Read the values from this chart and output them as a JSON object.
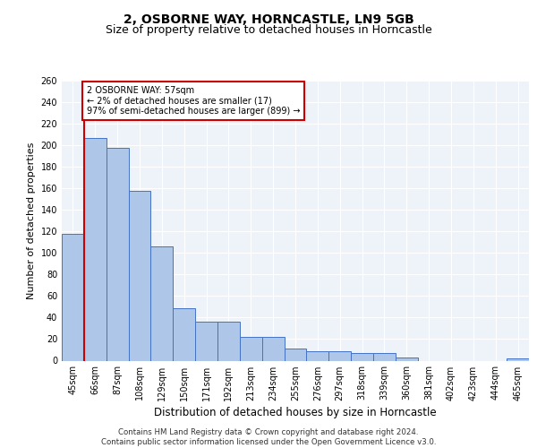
{
  "title": "2, OSBORNE WAY, HORNCASTLE, LN9 5GB",
  "subtitle": "Size of property relative to detached houses in Horncastle",
  "xlabel": "Distribution of detached houses by size in Horncastle",
  "ylabel": "Number of detached properties",
  "categories": [
    "45sqm",
    "66sqm",
    "87sqm",
    "108sqm",
    "129sqm",
    "150sqm",
    "171sqm",
    "192sqm",
    "213sqm",
    "234sqm",
    "255sqm",
    "276sqm",
    "297sqm",
    "318sqm",
    "339sqm",
    "360sqm",
    "381sqm",
    "402sqm",
    "423sqm",
    "444sqm",
    "465sqm"
  ],
  "values": [
    118,
    207,
    198,
    158,
    106,
    49,
    36,
    36,
    22,
    22,
    11,
    9,
    9,
    7,
    7,
    3,
    0,
    0,
    0,
    0,
    2
  ],
  "bar_color": "#aec6e8",
  "bar_edge_color": "#4472c4",
  "marker_color": "#cc0000",
  "annotation_text": "2 OSBORNE WAY: 57sqm\n← 2% of detached houses are smaller (17)\n97% of semi-detached houses are larger (899) →",
  "annotation_box_color": "#ffffff",
  "annotation_box_edge_color": "#cc0000",
  "ylim": [
    0,
    260
  ],
  "yticks": [
    0,
    20,
    40,
    60,
    80,
    100,
    120,
    140,
    160,
    180,
    200,
    220,
    240,
    260
  ],
  "footer_text": "Contains HM Land Registry data © Crown copyright and database right 2024.\nContains public sector information licensed under the Open Government Licence v3.0.",
  "bg_color": "#eef2f9",
  "grid_color": "#ffffff",
  "title_fontsize": 10,
  "subtitle_fontsize": 9,
  "tick_fontsize": 7,
  "ylabel_fontsize": 8,
  "xlabel_fontsize": 8.5,
  "footer_fontsize": 6.2
}
